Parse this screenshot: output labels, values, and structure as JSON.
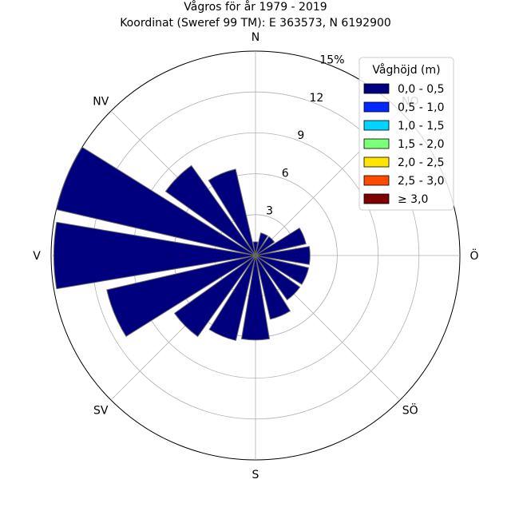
{
  "chart_data": {
    "type": "windrose",
    "title": "Vågros för år 1979 - 2019",
    "subtitle": "Koordinat (Sweref 99 TM): E 363573, N 6192900",
    "direction_labels": [
      "N",
      "NO",
      "Ö",
      "SÖ",
      "S",
      "SV",
      "V",
      "NV"
    ],
    "radial_ticks": [
      3,
      6,
      9,
      12,
      15
    ],
    "radial_tick_labels": [
      "3",
      "6",
      "9",
      "12",
      "15%"
    ],
    "rmax": 15,
    "grid": true,
    "legend": {
      "title": "Våghöjd (m)",
      "placement": "top-right",
      "entries": [
        {
          "label": "0,0 - 0,5",
          "color": "#00007f"
        },
        {
          "label": "0,5 - 1,0",
          "color": "#0028ff"
        },
        {
          "label": "1,0 - 1,5",
          "color": "#00d5ff"
        },
        {
          "label": "1,5 - 2,0",
          "color": "#7cff79"
        },
        {
          "label": "2,0 - 2,5",
          "color": "#ffe500"
        },
        {
          "label": "2,5 - 3,0",
          "color": "#ff4a00"
        },
        {
          "label": "≥ 3,0",
          "color": "#7f0000"
        }
      ]
    },
    "sector_directions_deg": [
      0,
      22.5,
      45,
      67.5,
      90,
      112.5,
      135,
      157.5,
      180,
      202.5,
      225,
      247.5,
      270,
      292.5,
      315,
      337.5
    ],
    "series": [
      {
        "name": "0,0 - 0,5",
        "values": [
          1.0,
          1.7,
          1.7,
          3.8,
          4.0,
          4.0,
          4.0,
          4.8,
          6.2,
          6.4,
          7.3,
          11.2,
          14.8,
          15.0,
          8.1,
          6.5
        ]
      }
    ]
  }
}
